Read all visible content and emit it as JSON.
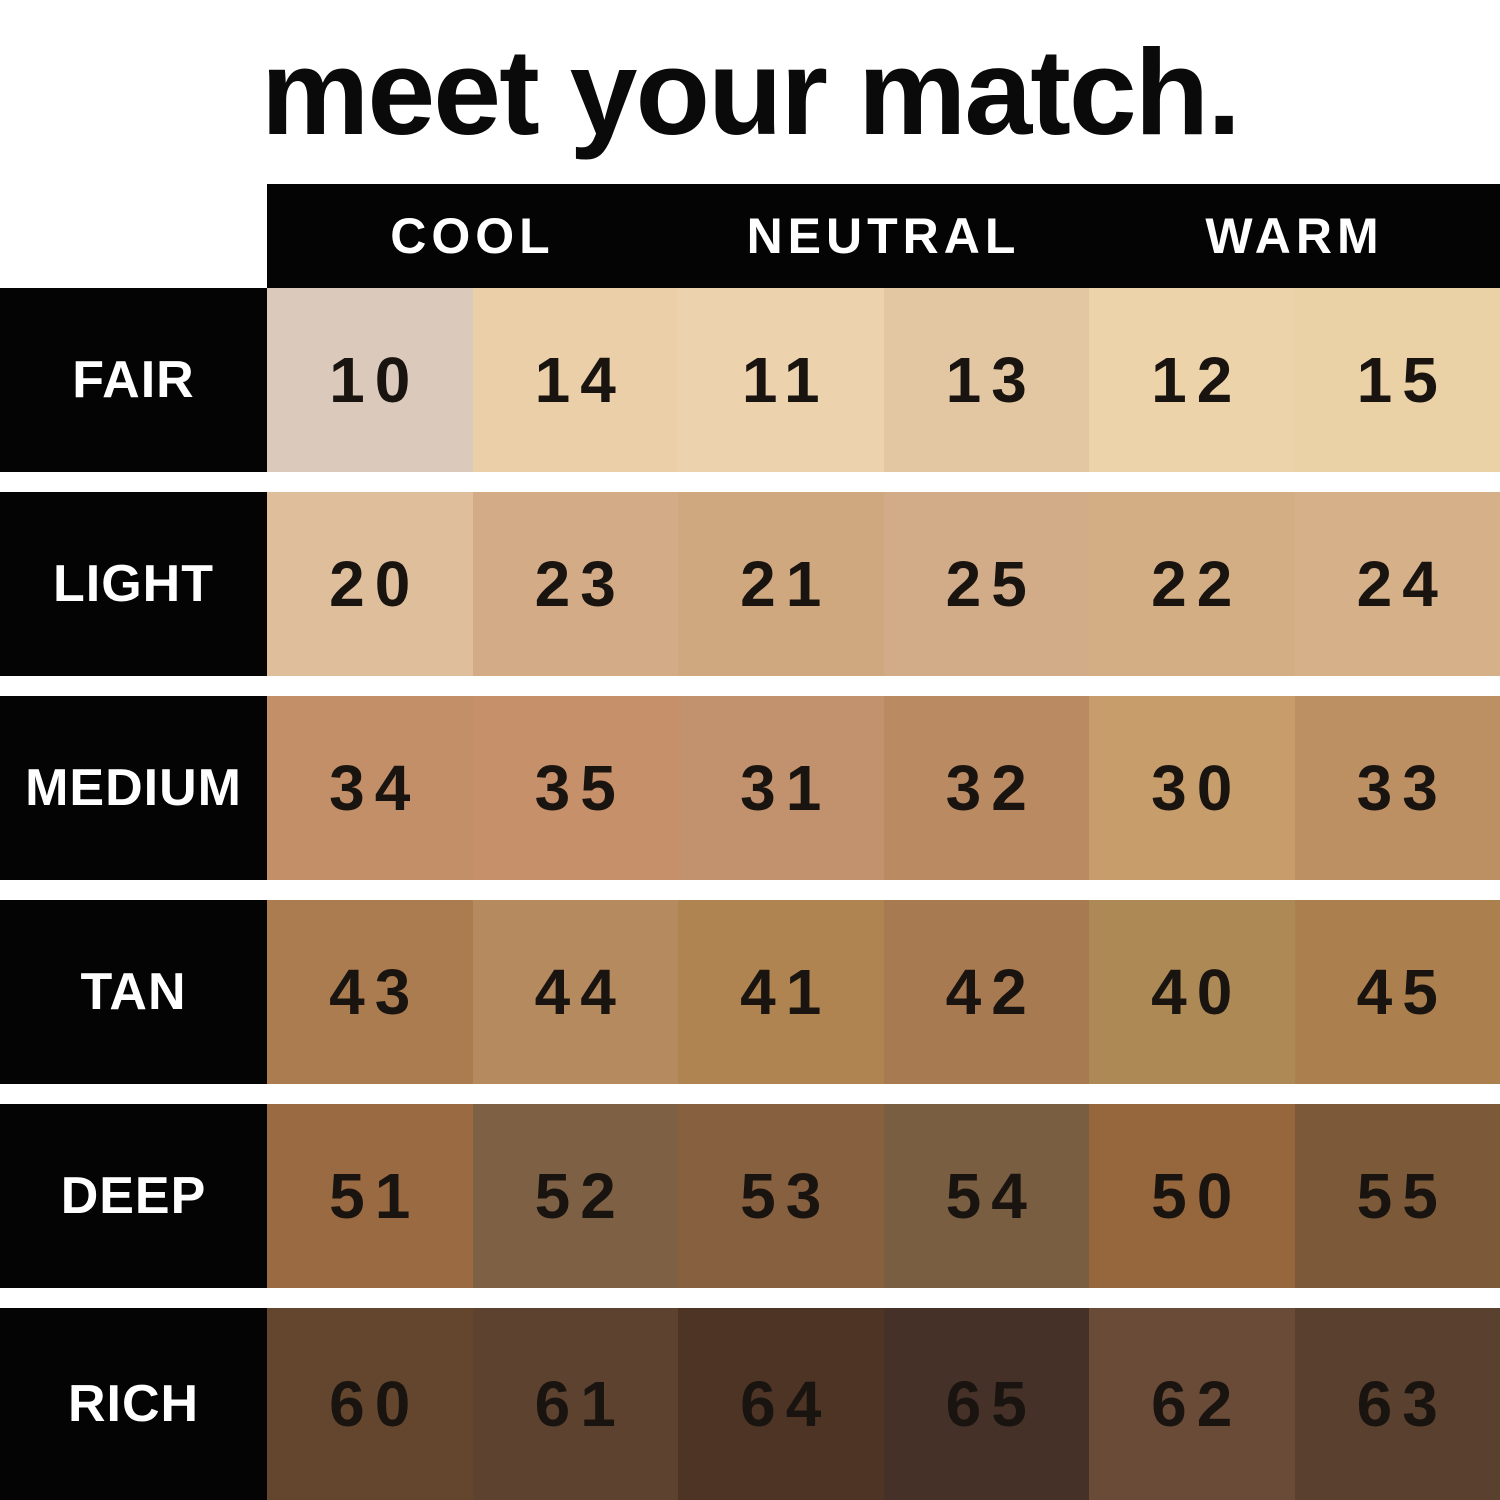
{
  "title": "meet your match.",
  "header": {
    "columns": [
      "COOL",
      "NEUTRAL",
      "WARM"
    ]
  },
  "colors": {
    "page_bg": "#ffffff",
    "bar_bg": "#040404",
    "bar_text": "#ffffff",
    "number_text": "#191410"
  },
  "chart_data": {
    "type": "table",
    "title": "meet your match.",
    "column_groups": [
      "COOL",
      "NEUTRAL",
      "WARM"
    ],
    "column_group_span": 2,
    "row_labels": [
      "FAIR",
      "LIGHT",
      "MEDIUM",
      "TAN",
      "DEEP",
      "RICH"
    ],
    "rows": [
      {
        "label": "FAIR",
        "shades": [
          {
            "number": "10",
            "color": "#dbcabb"
          },
          {
            "number": "14",
            "color": "#eacfa8"
          },
          {
            "number": "11",
            "color": "#ecd2ad"
          },
          {
            "number": "13",
            "color": "#e3c7a3"
          },
          {
            "number": "12",
            "color": "#edd3aa"
          },
          {
            "number": "15",
            "color": "#ebd1a6"
          }
        ]
      },
      {
        "label": "LIGHT",
        "shades": [
          {
            "number": "20",
            "color": "#dfbe9c"
          },
          {
            "number": "23",
            "color": "#d3ab86"
          },
          {
            "number": "21",
            "color": "#d0a87f"
          },
          {
            "number": "25",
            "color": "#d2ac89"
          },
          {
            "number": "22",
            "color": "#d3ae85"
          },
          {
            "number": "24",
            "color": "#d5b088"
          }
        ]
      },
      {
        "label": "MEDIUM",
        "shades": [
          {
            "number": "34",
            "color": "#c28f68"
          },
          {
            "number": "35",
            "color": "#c6906a"
          },
          {
            "number": "31",
            "color": "#c2916d"
          },
          {
            "number": "32",
            "color": "#ba8a62"
          },
          {
            "number": "30",
            "color": "#c79d6c"
          },
          {
            "number": "33",
            "color": "#bd9064"
          }
        ]
      },
      {
        "label": "TAN",
        "shades": [
          {
            "number": "43",
            "color": "#aa7c50"
          },
          {
            "number": "44",
            "color": "#b58a5e"
          },
          {
            "number": "41",
            "color": "#b08450"
          },
          {
            "number": "42",
            "color": "#a87a51"
          },
          {
            "number": "40",
            "color": "#ad8956"
          },
          {
            "number": "45",
            "color": "#ac7f4f"
          }
        ]
      },
      {
        "label": "DEEP",
        "shades": [
          {
            "number": "51",
            "color": "#9a6a42"
          },
          {
            "number": "52",
            "color": "#7e6145"
          },
          {
            "number": "53",
            "color": "#86603f"
          },
          {
            "number": "54",
            "color": "#7a5e41"
          },
          {
            "number": "50",
            "color": "#96663c"
          },
          {
            "number": "55",
            "color": "#7c5a39"
          }
        ]
      },
      {
        "label": "RICH",
        "shades": [
          {
            "number": "60",
            "color": "#64462e"
          },
          {
            "number": "61",
            "color": "#5d432f"
          },
          {
            "number": "64",
            "color": "#4d3424"
          },
          {
            "number": "65",
            "color": "#463128"
          },
          {
            "number": "62",
            "color": "#6a4b37"
          },
          {
            "number": "63",
            "color": "#5a402e"
          }
        ]
      }
    ]
  }
}
